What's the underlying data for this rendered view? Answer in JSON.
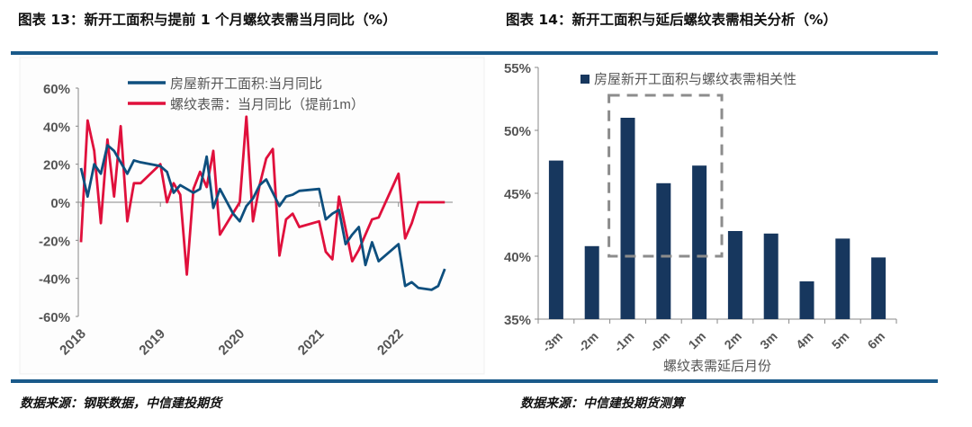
{
  "titles": {
    "left": "图表 13：新开工面积与提前 1 个月螺纹表需当月同比（%）",
    "right": "图表 14：新开工面积与延后螺纹表需相关分析（%）"
  },
  "sources": {
    "left": "数据来源：钢联数据，中信建投期货",
    "right": "数据来源：中信建投期货测算"
  },
  "chart_data": [
    {
      "type": "line",
      "ylim": [
        -60,
        60
      ],
      "yticks": [
        "60%",
        "40%",
        "20%",
        "0%",
        "-20%",
        "-40%",
        "-60%"
      ],
      "xticks": [
        "2018",
        "2019",
        "2020",
        "2021",
        "2022"
      ],
      "legend_position": "top",
      "series": [
        {
          "name": "房屋新开工面积:当月同比",
          "color": "#0e4f7e",
          "points": [
            [
              "2018-01",
              18
            ],
            [
              "2018-02",
              3
            ],
            [
              "2018-03",
              20
            ],
            [
              "2018-04",
              15
            ],
            [
              "2018-05",
              30
            ],
            [
              "2018-06",
              27
            ],
            [
              "2018-08",
              15
            ],
            [
              "2018-09",
              22
            ],
            [
              "2018-10",
              21
            ],
            [
              "2019-01",
              19
            ],
            [
              "2019-02",
              16
            ],
            [
              "2019-03",
              5
            ],
            [
              "2019-04",
              9
            ],
            [
              "2019-06",
              5
            ],
            [
              "2019-07",
              7
            ],
            [
              "2019-08",
              24
            ],
            [
              "2019-09",
              -3
            ],
            [
              "2019-10",
              7
            ],
            [
              "2019-12",
              -6
            ],
            [
              "2020-01",
              -10
            ],
            [
              "2020-02",
              -2
            ],
            [
              "2020-03",
              2
            ],
            [
              "2020-04",
              9
            ],
            [
              "2020-05",
              12
            ],
            [
              "2020-07",
              -2
            ],
            [
              "2020-08",
              3
            ],
            [
              "2020-09",
              4
            ],
            [
              "2020-10",
              6
            ],
            [
              "2021-01",
              7
            ],
            [
              "2021-02",
              -9
            ],
            [
              "2021-03",
              -6
            ],
            [
              "2021-04",
              -4
            ],
            [
              "2021-05",
              -22
            ],
            [
              "2021-06",
              -17
            ],
            [
              "2021-07",
              -13
            ],
            [
              "2021-08",
              -33
            ],
            [
              "2021-09",
              -21
            ],
            [
              "2021-10",
              -31
            ],
            [
              "2022-01",
              -22
            ],
            [
              "2022-02",
              -44
            ],
            [
              "2022-03",
              -42
            ],
            [
              "2022-04",
              -45
            ],
            [
              "2022-06",
              -46
            ],
            [
              "2022-07",
              -44
            ],
            [
              "2022-08",
              -35
            ]
          ]
        },
        {
          "name": "螺纹表需：当月同比（提前1m）",
          "color": "#e0103c",
          "points": [
            [
              "2018-01",
              -21
            ],
            [
              "2018-02",
              43
            ],
            [
              "2018-03",
              27
            ],
            [
              "2018-04",
              -11
            ],
            [
              "2018-05",
              33
            ],
            [
              "2018-06",
              3
            ],
            [
              "2018-07",
              40
            ],
            [
              "2018-08",
              -10
            ],
            [
              "2018-09",
              10
            ],
            [
              "2018-10",
              10
            ],
            [
              "2019-01",
              20
            ],
            [
              "2019-02",
              0
            ],
            [
              "2019-03",
              10
            ],
            [
              "2019-04",
              4
            ],
            [
              "2019-05",
              -38
            ],
            [
              "2019-06",
              7
            ],
            [
              "2019-07",
              16
            ],
            [
              "2019-08",
              8
            ],
            [
              "2019-09",
              27
            ],
            [
              "2019-10",
              -17
            ],
            [
              "2020-01",
              0
            ],
            [
              "2020-02",
              45
            ],
            [
              "2020-03",
              -10
            ],
            [
              "2020-04",
              9
            ],
            [
              "2020-05",
              23
            ],
            [
              "2020-06",
              28
            ],
            [
              "2020-07",
              -28
            ],
            [
              "2020-08",
              -9
            ],
            [
              "2020-09",
              -6
            ],
            [
              "2020-10",
              -13
            ],
            [
              "2021-01",
              -10
            ],
            [
              "2021-02",
              -26
            ],
            [
              "2021-03",
              -30
            ],
            [
              "2021-04",
              3
            ],
            [
              "2021-06",
              -31
            ],
            [
              "2021-07",
              -25
            ],
            [
              "2021-08",
              -17
            ],
            [
              "2021-09",
              -9
            ],
            [
              "2021-10",
              -8
            ],
            [
              "2022-01",
              15
            ],
            [
              "2022-02",
              -19
            ],
            [
              "2022-03",
              -11
            ],
            [
              "2022-04",
              0
            ],
            [
              "2022-05",
              0
            ],
            [
              "2022-06",
              0
            ],
            [
              "2022-07",
              0
            ],
            [
              "2022-08",
              0
            ]
          ]
        }
      ]
    },
    {
      "type": "bar",
      "ylim": [
        35,
        55
      ],
      "yticks": [
        "55%",
        "50%",
        "45%",
        "40%",
        "35%"
      ],
      "categories": [
        "-3m",
        "-2m",
        "-1m",
        "-0m",
        "1m",
        "2m",
        "3m",
        "4m",
        "5m",
        "6m"
      ],
      "values": [
        47.6,
        40.8,
        51.0,
        45.8,
        47.2,
        42.0,
        41.8,
        38.0,
        41.4,
        39.9
      ],
      "series_name": "房屋新开工面积与螺纹表需相关性",
      "color": "#17375e",
      "xlabel": "螺纹表需延后月份",
      "highlight": {
        "from": "-1m",
        "to": "1m",
        "style": "dashed",
        "color": "#8c8c8c"
      },
      "legend_position": "top"
    }
  ]
}
